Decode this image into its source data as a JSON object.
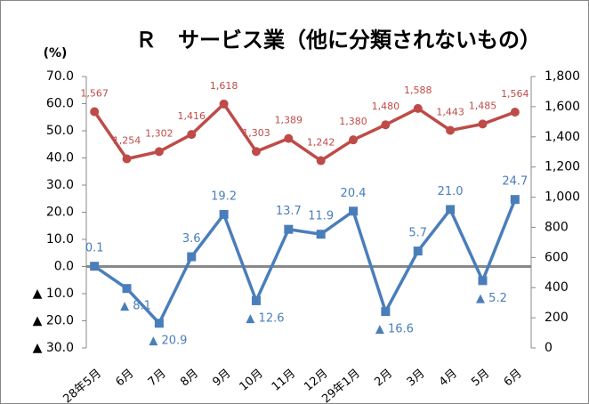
{
  "chart_data": {
    "type": "line",
    "title": "Ｒ　サービス業（他に分類されないもの）",
    "y_label": "(%)",
    "categories": [
      "28年5月",
      "6月",
      "7月",
      "8月",
      "9月",
      "10月",
      "11月",
      "12月",
      "29年1月",
      "2月",
      "3月",
      "4月",
      "5月",
      "6月"
    ],
    "series": [
      {
        "color": "#4a7ebb",
        "marker": "square",
        "values": [
          0.1,
          -8.1,
          -20.9,
          3.6,
          19.2,
          -12.6,
          13.7,
          11.9,
          20.4,
          -16.6,
          5.7,
          21.0,
          -5.2,
          24.7
        ],
        "value_labels": [
          "0.1",
          "▲ 8.1",
          "▲ 20.9",
          "3.6",
          "19.2",
          "▲ 12.6",
          "13.7",
          "11.9",
          "20.4",
          "▲ 16.6",
          "5.7",
          "21.0",
          "▲ 5.2",
          "24.7"
        ]
      },
      {
        "color": "#be4b48",
        "marker": "circle",
        "axis": "y2",
        "values": [
          1567,
          1254,
          1302,
          1416,
          1618,
          1303,
          1389,
          1242,
          1380,
          1480,
          1588,
          1443,
          1485,
          1564
        ],
        "value_labels": [
          "1,567",
          "1,254",
          "1,302",
          "1,416",
          "1,618",
          "1,303",
          "1,389",
          "1,242",
          "1,380",
          "1,480",
          "1,588",
          "1,443",
          "1,485",
          "1,564"
        ]
      }
    ],
    "ylim": [
      -30,
      70
    ],
    "yticks": [
      {
        "value": 70,
        "label": "70.0"
      },
      {
        "value": 60,
        "label": "60.0"
      },
      {
        "value": 50,
        "label": "50.0"
      },
      {
        "value": 40,
        "label": "40.0"
      },
      {
        "value": 30,
        "label": "30.0"
      },
      {
        "value": 20,
        "label": "20.0"
      },
      {
        "value": 10,
        "label": "10.0"
      },
      {
        "value": 0,
        "label": "0.0"
      },
      {
        "value": -10,
        "label": "▲ 10.0"
      },
      {
        "value": -20,
        "label": "▲ 20.0"
      },
      {
        "value": -30,
        "label": "▲ 30.0"
      }
    ],
    "y2lim": [
      0,
      1800
    ],
    "y2ticks": [
      0,
      200,
      400,
      600,
      800,
      {
        "value": 1000,
        "label": "1,000"
      },
      {
        "value": 1200,
        "label": "1,200"
      },
      {
        "value": 1400,
        "label": "1,400"
      },
      {
        "value": 1600,
        "label": "1,600"
      },
      {
        "value": 1800,
        "label": "1,800"
      }
    ]
  }
}
